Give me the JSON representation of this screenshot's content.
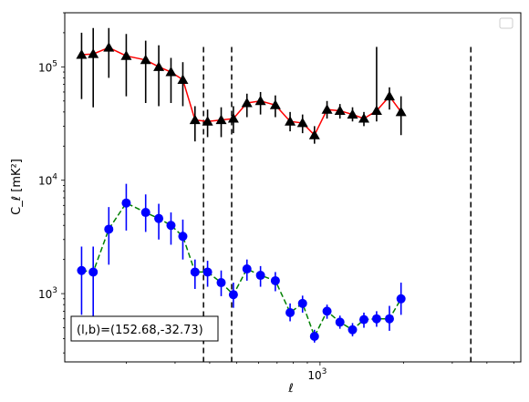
{
  "chart_data": {
    "type": "scatter",
    "xlabel": "ℓ",
    "ylabel": "C_ℓ  [mK²]",
    "x_scale": "log",
    "y_scale": "log",
    "xlim": [
      120,
      5300
    ],
    "ylim": [
      250,
      300000
    ],
    "x_tick_labels": [
      {
        "value": 1000,
        "label": "10",
        "sup": "3"
      }
    ],
    "y_tick_labels": [
      {
        "value": 1000,
        "label": "10",
        "sup": "3"
      },
      {
        "value": 10000,
        "label": "10",
        "sup": "4"
      },
      {
        "value": 100000,
        "label": "10",
        "sup": "5"
      }
    ],
    "vlines": [
      380,
      480,
      3500
    ],
    "annotation": "(l,b)=(152.68,-32.73)",
    "legend": {
      "placement": "top-right",
      "entries": []
    },
    "series": [
      {
        "marker": "triangle",
        "color": "#000000",
        "line_color": "#ff0000",
        "line_style": "solid",
        "points": [
          {
            "x": 138,
            "y": 128000,
            "lo": 52000,
            "hi": 200000
          },
          {
            "x": 152,
            "y": 130000,
            "lo": 44000,
            "hi": 220000
          },
          {
            "x": 173,
            "y": 148000,
            "lo": 80000,
            "hi": 220000
          },
          {
            "x": 200,
            "y": 125000,
            "lo": 55000,
            "hi": 195000
          },
          {
            "x": 235,
            "y": 115000,
            "lo": 48000,
            "hi": 170000
          },
          {
            "x": 262,
            "y": 100000,
            "lo": 45000,
            "hi": 155000
          },
          {
            "x": 290,
            "y": 90000,
            "lo": 48000,
            "hi": 120000
          },
          {
            "x": 320,
            "y": 77000,
            "lo": 45000,
            "hi": 110000
          },
          {
            "x": 354,
            "y": 34000,
            "lo": 22000,
            "hi": 45000
          },
          {
            "x": 393,
            "y": 33000,
            "lo": 24000,
            "hi": 42000
          },
          {
            "x": 440,
            "y": 34000,
            "lo": 24000,
            "hi": 44000
          },
          {
            "x": 487,
            "y": 35000,
            "lo": 26000,
            "hi": 45000
          },
          {
            "x": 545,
            "y": 48000,
            "lo": 36000,
            "hi": 58000
          },
          {
            "x": 610,
            "y": 50000,
            "lo": 38000,
            "hi": 60000
          },
          {
            "x": 690,
            "y": 46000,
            "lo": 36000,
            "hi": 56000
          },
          {
            "x": 780,
            "y": 33000,
            "lo": 27000,
            "hi": 40000
          },
          {
            "x": 865,
            "y": 32000,
            "lo": 26000,
            "hi": 38000
          },
          {
            "x": 955,
            "y": 25000,
            "lo": 21000,
            "hi": 30000
          },
          {
            "x": 1060,
            "y": 42000,
            "lo": 35000,
            "hi": 50000
          },
          {
            "x": 1180,
            "y": 41000,
            "lo": 35000,
            "hi": 47000
          },
          {
            "x": 1310,
            "y": 38000,
            "lo": 33000,
            "hi": 44000
          },
          {
            "x": 1440,
            "y": 35000,
            "lo": 30000,
            "hi": 40000
          },
          {
            "x": 1600,
            "y": 41000,
            "lo": 33000,
            "hi": 150000
          },
          {
            "x": 1780,
            "y": 55000,
            "lo": 42000,
            "hi": 66000
          },
          {
            "x": 1960,
            "y": 40000,
            "lo": 25000,
            "hi": 55000
          }
        ]
      },
      {
        "marker": "circle",
        "color": "#0000ff",
        "line_color": "#008000",
        "line_style": "dashed",
        "points": [
          {
            "x": 138,
            "y": 1600,
            "lo": 650,
            "hi": 2600
          },
          {
            "x": 152,
            "y": 1550,
            "lo": 500,
            "hi": 2600
          },
          {
            "x": 173,
            "y": 3700,
            "lo": 1800,
            "hi": 5800
          },
          {
            "x": 200,
            "y": 6300,
            "lo": 3600,
            "hi": 9300
          },
          {
            "x": 235,
            "y": 5200,
            "lo": 3500,
            "hi": 7500
          },
          {
            "x": 262,
            "y": 4600,
            "lo": 3000,
            "hi": 6200
          },
          {
            "x": 290,
            "y": 4000,
            "lo": 2700,
            "hi": 5200
          },
          {
            "x": 320,
            "y": 3200,
            "lo": 2000,
            "hi": 4500
          },
          {
            "x": 354,
            "y": 1550,
            "lo": 1100,
            "hi": 2000
          },
          {
            "x": 393,
            "y": 1550,
            "lo": 1150,
            "hi": 1950
          },
          {
            "x": 440,
            "y": 1250,
            "lo": 950,
            "hi": 1600
          },
          {
            "x": 487,
            "y": 980,
            "lo": 750,
            "hi": 1250
          },
          {
            "x": 545,
            "y": 1650,
            "lo": 1300,
            "hi": 2000
          },
          {
            "x": 610,
            "y": 1450,
            "lo": 1150,
            "hi": 1750
          },
          {
            "x": 690,
            "y": 1300,
            "lo": 1050,
            "hi": 1550
          },
          {
            "x": 780,
            "y": 680,
            "lo": 570,
            "hi": 820
          },
          {
            "x": 865,
            "y": 820,
            "lo": 680,
            "hi": 960
          },
          {
            "x": 955,
            "y": 420,
            "lo": 370,
            "hi": 480
          },
          {
            "x": 1060,
            "y": 700,
            "lo": 600,
            "hi": 800
          },
          {
            "x": 1180,
            "y": 560,
            "lo": 490,
            "hi": 640
          },
          {
            "x": 1310,
            "y": 480,
            "lo": 420,
            "hi": 550
          },
          {
            "x": 1440,
            "y": 590,
            "lo": 500,
            "hi": 680
          },
          {
            "x": 1600,
            "y": 600,
            "lo": 510,
            "hi": 700
          },
          {
            "x": 1780,
            "y": 600,
            "lo": 470,
            "hi": 780
          },
          {
            "x": 1960,
            "y": 900,
            "lo": 650,
            "hi": 1250
          }
        ]
      }
    ]
  }
}
